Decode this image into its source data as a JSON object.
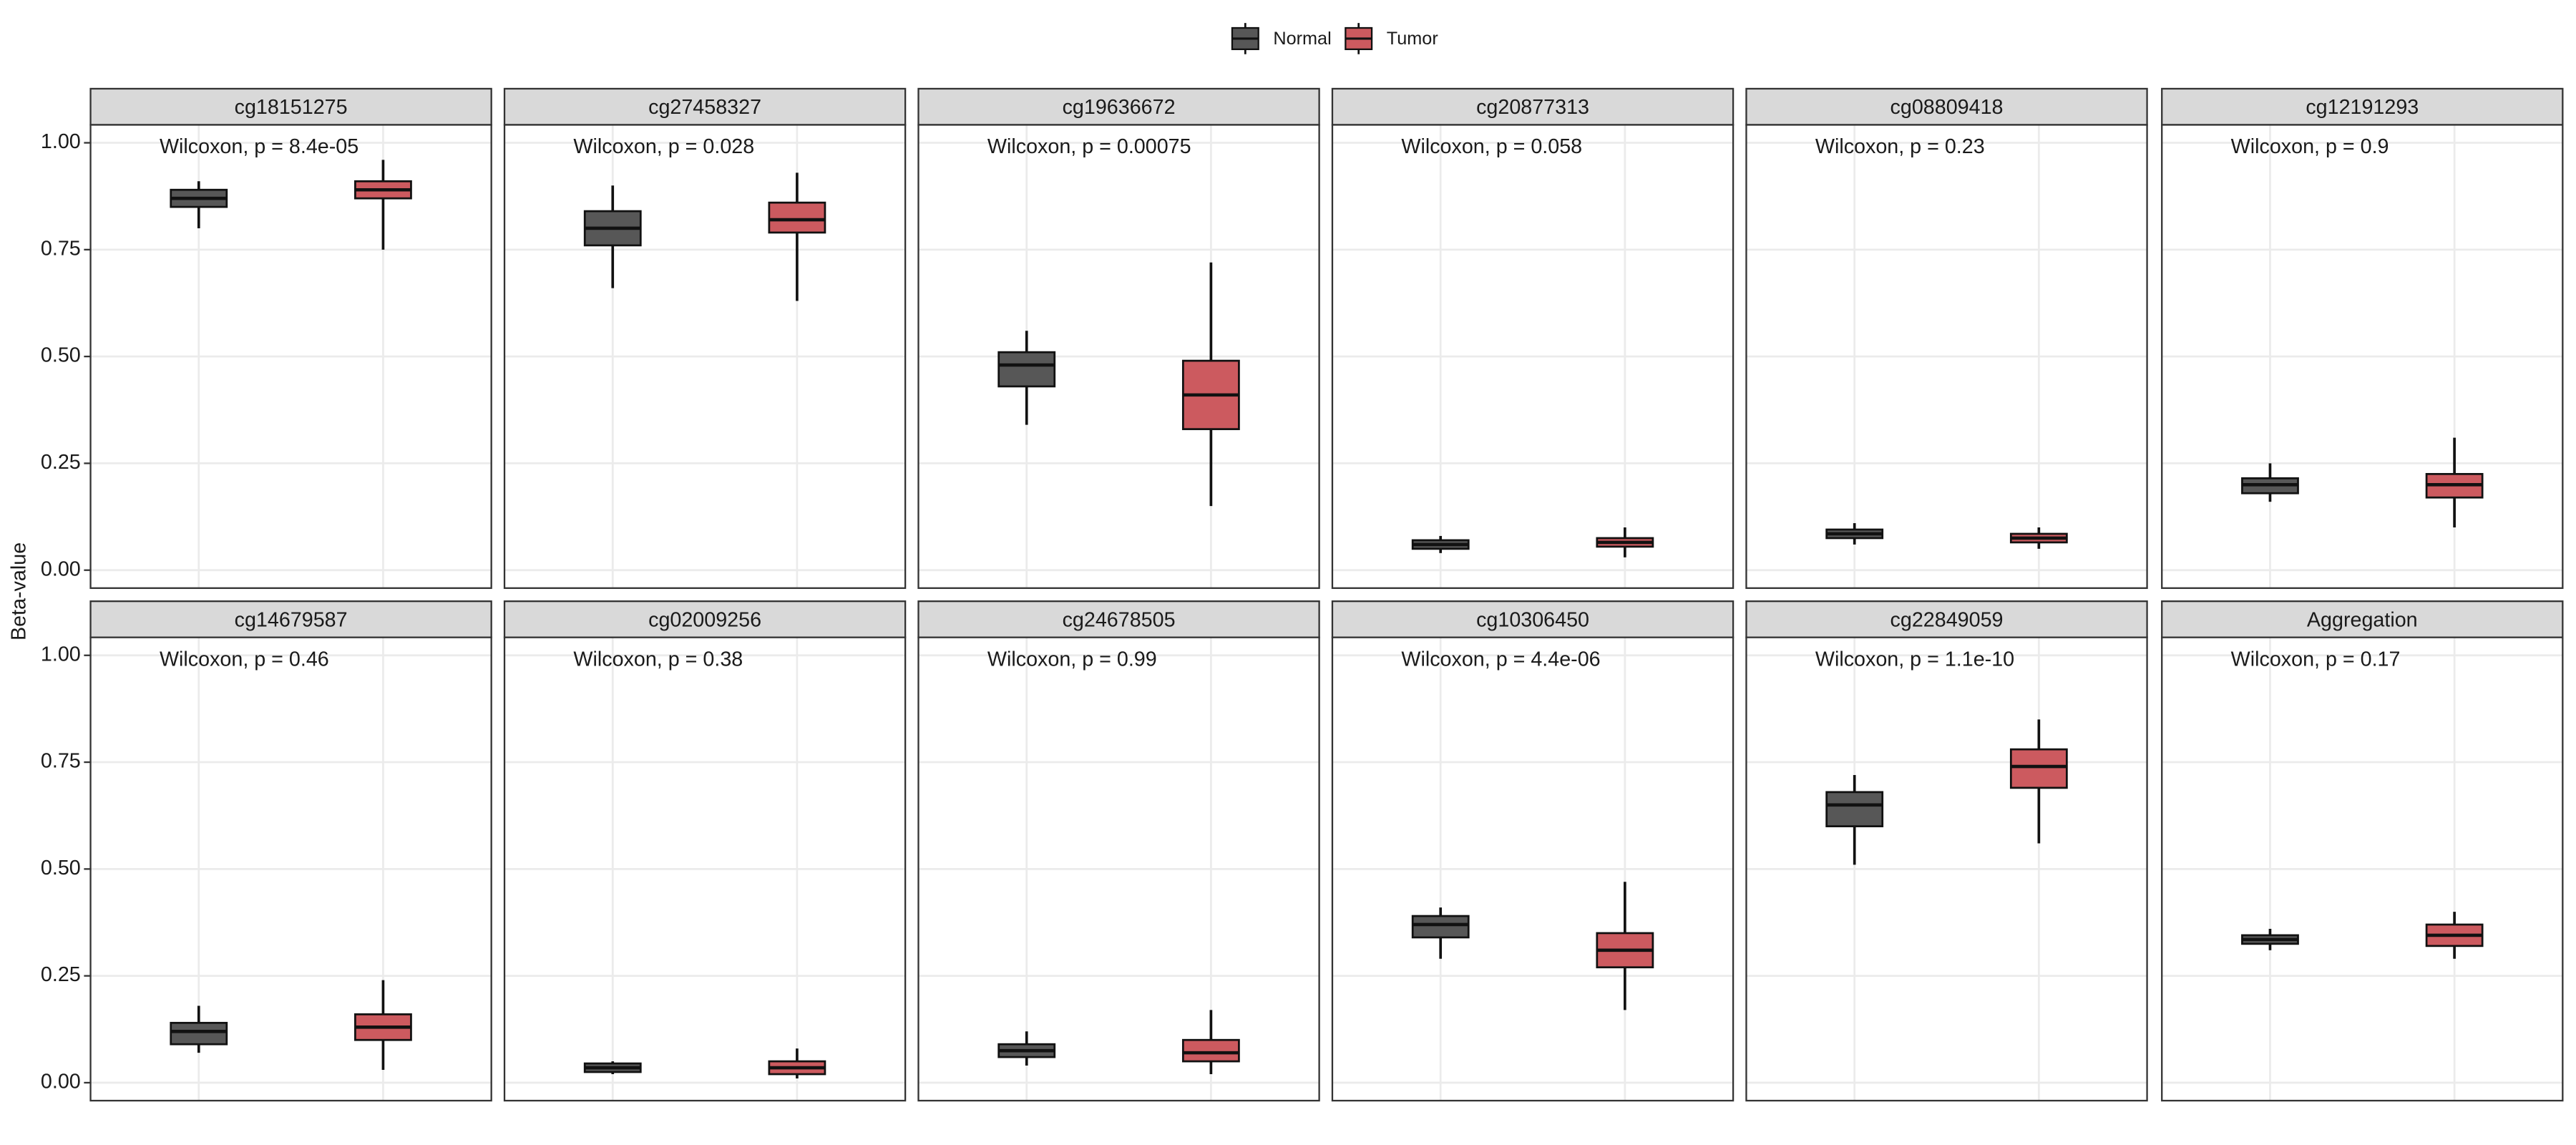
{
  "chart_data": [
    {
      "type": "box",
      "title": "cg18151275",
      "annotation": "Wilcoxon, p = 8.4e-05",
      "ylabel": "Beta-value",
      "ylim": [
        -0.042,
        1.042
      ],
      "yticks": [
        {
          "value": 0,
          "label": "0.00"
        },
        {
          "value": 0.25,
          "label": "0.25"
        },
        {
          "value": 0.5,
          "label": "0.50"
        },
        {
          "value": 0.75,
          "label": "0.75"
        },
        {
          "value": 1,
          "label": "1.00"
        }
      ],
      "grid": true,
      "series": [
        {
          "name": "Normal",
          "color": "#575757",
          "low": 0.8,
          "q1": 0.85,
          "median": 0.87,
          "q3": 0.89,
          "high": 0.91
        },
        {
          "name": "Tumor",
          "color": "#cc5a5f",
          "low": 0.75,
          "q1": 0.87,
          "median": 0.89,
          "q3": 0.91,
          "high": 0.96
        }
      ]
    },
    {
      "type": "box",
      "title": "cg27458327",
      "annotation": "Wilcoxon, p = 0.028",
      "ylim": [
        -0.042,
        1.042
      ],
      "yticks": [
        0,
        0.25,
        0.5,
        0.75,
        1
      ],
      "grid": true,
      "series": [
        {
          "name": "Normal",
          "color": "#575757",
          "low": 0.66,
          "q1": 0.76,
          "median": 0.8,
          "q3": 0.84,
          "high": 0.9
        },
        {
          "name": "Tumor",
          "color": "#cc5a5f",
          "low": 0.63,
          "q1": 0.79,
          "median": 0.82,
          "q3": 0.86,
          "high": 0.93
        }
      ]
    },
    {
      "type": "box",
      "title": "cg19636672",
      "annotation": "Wilcoxon, p = 0.00075",
      "ylim": [
        -0.042,
        1.042
      ],
      "yticks": [
        0,
        0.25,
        0.5,
        0.75,
        1
      ],
      "grid": true,
      "series": [
        {
          "name": "Normal",
          "color": "#575757",
          "low": 0.34,
          "q1": 0.43,
          "median": 0.48,
          "q3": 0.51,
          "high": 0.56
        },
        {
          "name": "Tumor",
          "color": "#cc5a5f",
          "low": 0.15,
          "q1": 0.33,
          "median": 0.41,
          "q3": 0.49,
          "high": 0.72
        }
      ]
    },
    {
      "type": "box",
      "title": "cg20877313",
      "annotation": "Wilcoxon, p = 0.058",
      "ylim": [
        -0.042,
        1.042
      ],
      "yticks": [
        0,
        0.25,
        0.5,
        0.75,
        1
      ],
      "grid": true,
      "series": [
        {
          "name": "Normal",
          "color": "#575757",
          "low": 0.04,
          "q1": 0.05,
          "median": 0.06,
          "q3": 0.07,
          "high": 0.08
        },
        {
          "name": "Tumor",
          "color": "#cc5a5f",
          "low": 0.03,
          "q1": 0.055,
          "median": 0.065,
          "q3": 0.075,
          "high": 0.1
        }
      ]
    },
    {
      "type": "box",
      "title": "cg08809418",
      "annotation": "Wilcoxon, p = 0.23",
      "ylim": [
        -0.042,
        1.042
      ],
      "yticks": [
        0,
        0.25,
        0.5,
        0.75,
        1
      ],
      "grid": true,
      "series": [
        {
          "name": "Normal",
          "color": "#575757",
          "low": 0.06,
          "q1": 0.075,
          "median": 0.085,
          "q3": 0.095,
          "high": 0.11
        },
        {
          "name": "Tumor",
          "color": "#cc5a5f",
          "low": 0.05,
          "q1": 0.065,
          "median": 0.075,
          "q3": 0.085,
          "high": 0.1
        }
      ]
    },
    {
      "type": "box",
      "title": "cg12191293",
      "annotation": "Wilcoxon, p = 0.9",
      "ylim": [
        -0.042,
        1.042
      ],
      "yticks": [
        0,
        0.25,
        0.5,
        0.75,
        1
      ],
      "grid": true,
      "series": [
        {
          "name": "Normal",
          "color": "#575757",
          "low": 0.16,
          "q1": 0.18,
          "median": 0.2,
          "q3": 0.215,
          "high": 0.25
        },
        {
          "name": "Tumor",
          "color": "#cc5a5f",
          "low": 0.1,
          "q1": 0.17,
          "median": 0.2,
          "q3": 0.225,
          "high": 0.31
        }
      ]
    },
    {
      "type": "box",
      "title": "cg14679587",
      "annotation": "Wilcoxon, p = 0.46",
      "ylim": [
        -0.042,
        1.042
      ],
      "yticks": [
        {
          "value": 0,
          "label": "0.00"
        },
        {
          "value": 0.25,
          "label": "0.25"
        },
        {
          "value": 0.5,
          "label": "0.50"
        },
        {
          "value": 0.75,
          "label": "0.75"
        },
        {
          "value": 1,
          "label": "1.00"
        }
      ],
      "grid": true,
      "series": [
        {
          "name": "Normal",
          "color": "#575757",
          "low": 0.07,
          "q1": 0.09,
          "median": 0.12,
          "q3": 0.14,
          "high": 0.18
        },
        {
          "name": "Tumor",
          "color": "#cc5a5f",
          "low": 0.03,
          "q1": 0.1,
          "median": 0.13,
          "q3": 0.16,
          "high": 0.24
        }
      ]
    },
    {
      "type": "box",
      "title": "cg02009256",
      "annotation": "Wilcoxon, p = 0.38",
      "ylim": [
        -0.042,
        1.042
      ],
      "yticks": [
        0,
        0.25,
        0.5,
        0.75,
        1
      ],
      "grid": true,
      "series": [
        {
          "name": "Normal",
          "color": "#575757",
          "low": 0.02,
          "q1": 0.025,
          "median": 0.035,
          "q3": 0.045,
          "high": 0.05
        },
        {
          "name": "Tumor",
          "color": "#cc5a5f",
          "low": 0.01,
          "q1": 0.02,
          "median": 0.035,
          "q3": 0.05,
          "high": 0.08
        }
      ]
    },
    {
      "type": "box",
      "title": "cg24678505",
      "annotation": "Wilcoxon, p = 0.99",
      "ylim": [
        -0.042,
        1.042
      ],
      "yticks": [
        0,
        0.25,
        0.5,
        0.75,
        1
      ],
      "grid": true,
      "series": [
        {
          "name": "Normal",
          "color": "#575757",
          "low": 0.04,
          "q1": 0.06,
          "median": 0.075,
          "q3": 0.09,
          "high": 0.12
        },
        {
          "name": "Tumor",
          "color": "#cc5a5f",
          "low": 0.02,
          "q1": 0.05,
          "median": 0.07,
          "q3": 0.1,
          "high": 0.17
        }
      ]
    },
    {
      "type": "box",
      "title": "cg10306450",
      "annotation": "Wilcoxon, p = 4.4e-06",
      "ylim": [
        -0.042,
        1.042
      ],
      "yticks": [
        0,
        0.25,
        0.5,
        0.75,
        1
      ],
      "grid": true,
      "series": [
        {
          "name": "Normal",
          "color": "#575757",
          "low": 0.29,
          "q1": 0.34,
          "median": 0.37,
          "q3": 0.39,
          "high": 0.41
        },
        {
          "name": "Tumor",
          "color": "#cc5a5f",
          "low": 0.17,
          "q1": 0.27,
          "median": 0.31,
          "q3": 0.35,
          "high": 0.47
        }
      ]
    },
    {
      "type": "box",
      "title": "cg22849059",
      "annotation": "Wilcoxon, p = 1.1e-10",
      "ylim": [
        -0.042,
        1.042
      ],
      "yticks": [
        0,
        0.25,
        0.5,
        0.75,
        1
      ],
      "grid": true,
      "series": [
        {
          "name": "Normal",
          "color": "#575757",
          "low": 0.51,
          "q1": 0.6,
          "median": 0.65,
          "q3": 0.68,
          "high": 0.72
        },
        {
          "name": "Tumor",
          "color": "#cc5a5f",
          "low": 0.56,
          "q1": 0.69,
          "median": 0.74,
          "q3": 0.78,
          "high": 0.85
        }
      ]
    },
    {
      "type": "box",
      "title": "Aggregation",
      "annotation": "Wilcoxon, p = 0.17",
      "ylim": [
        -0.042,
        1.042
      ],
      "yticks": [
        0,
        0.25,
        0.5,
        0.75,
        1
      ],
      "grid": true,
      "series": [
        {
          "name": "Normal",
          "color": "#575757",
          "low": 0.31,
          "q1": 0.325,
          "median": 0.335,
          "q3": 0.345,
          "high": 0.36
        },
        {
          "name": "Tumor",
          "color": "#cc5a5f",
          "low": 0.29,
          "q1": 0.32,
          "median": 0.345,
          "q3": 0.37,
          "high": 0.4
        }
      ]
    }
  ]
}
